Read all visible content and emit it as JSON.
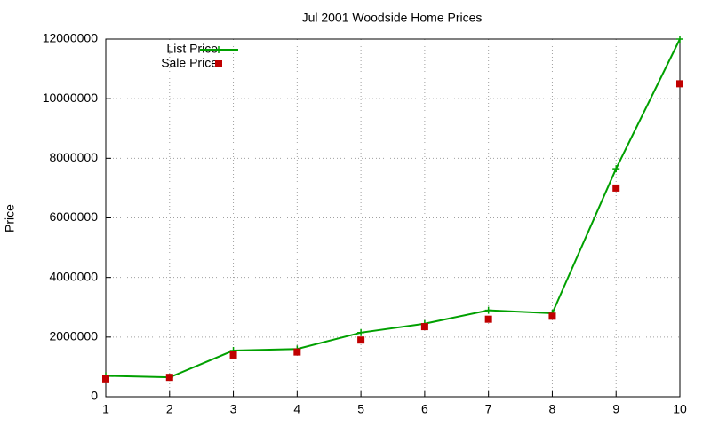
{
  "chart_data": {
    "type": "line",
    "title": "Jul 2001 Woodside Home Prices",
    "y_label": "Price",
    "x": [
      1,
      2,
      3,
      4,
      5,
      6,
      7,
      8,
      9,
      10
    ],
    "series": [
      {
        "name": "List Price",
        "color": "#00a000",
        "marker": "plus",
        "line": true,
        "values": [
          700000,
          650000,
          1550000,
          1600000,
          2150000,
          2450000,
          2900000,
          2800000,
          7650000,
          12000000
        ]
      },
      {
        "name": "Sale Price",
        "color": "#c00000",
        "marker": "square",
        "line": false,
        "values": [
          600000,
          650000,
          1400000,
          1500000,
          1900000,
          2350000,
          2600000,
          2700000,
          7000000,
          10500000
        ]
      }
    ],
    "xlim": [
      1,
      10
    ],
    "xticks": [
      1,
      2,
      3,
      4,
      5,
      6,
      7,
      8,
      9,
      10
    ],
    "ylim": [
      0,
      12000000
    ],
    "yticks": [
      0,
      2000000,
      4000000,
      6000000,
      8000000,
      10000000,
      12000000
    ],
    "grid": true,
    "legend_position": "top-left"
  }
}
